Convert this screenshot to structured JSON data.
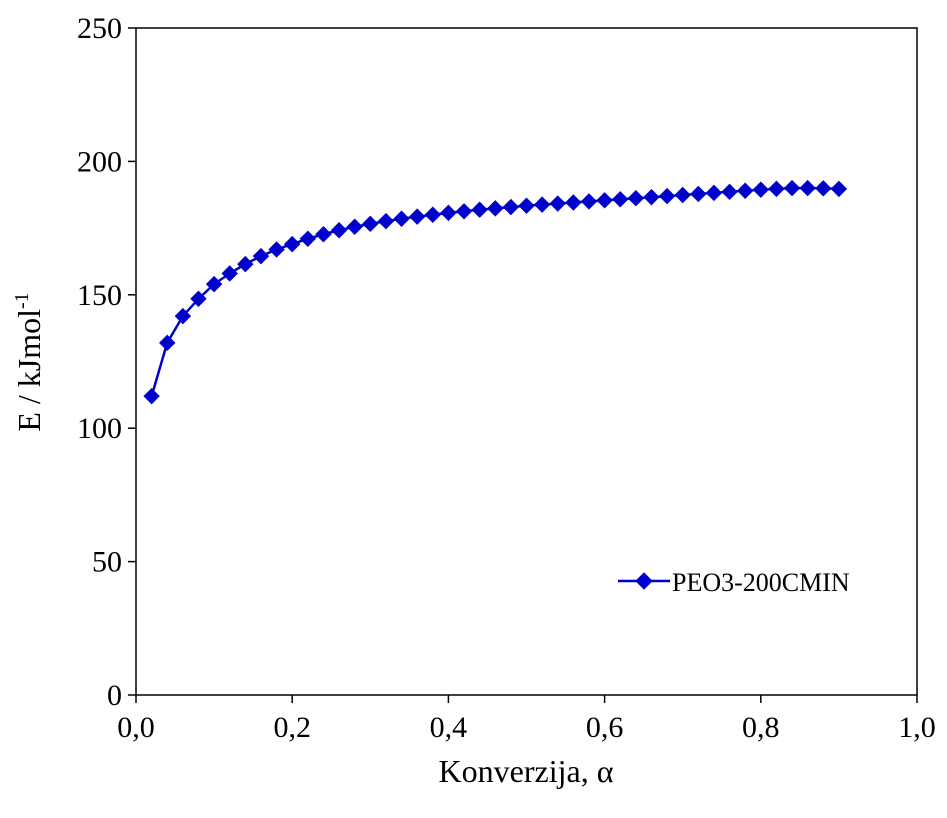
{
  "chart_data": {
    "type": "line",
    "title": "",
    "xlabel": "Konverzija, α",
    "ylabel_main": "E / kJmol",
    "ylabel_sup": "-1",
    "xlim": [
      0,
      1
    ],
    "ylim": [
      0,
      250
    ],
    "x_ticks": [
      0,
      0.2,
      0.4,
      0.6,
      0.8,
      1.0
    ],
    "x_tick_labels": [
      "0,0",
      "0,2",
      "0,4",
      "0,6",
      "0,8",
      "1,0"
    ],
    "y_ticks": [
      0,
      50,
      100,
      150,
      200,
      250
    ],
    "y_tick_labels": [
      "0",
      "50",
      "100",
      "150",
      "200",
      "250"
    ],
    "grid": false,
    "legend_position": "lower-right",
    "series": [
      {
        "name": "PEO3-200CMIN",
        "color": "#0000CC",
        "marker": "diamond",
        "x": [
          0.02,
          0.04,
          0.06,
          0.08,
          0.1,
          0.12,
          0.14,
          0.16,
          0.18,
          0.2,
          0.22,
          0.24,
          0.26,
          0.28,
          0.3,
          0.32,
          0.34,
          0.36,
          0.38,
          0.4,
          0.42,
          0.44,
          0.46,
          0.48,
          0.5,
          0.52,
          0.54,
          0.56,
          0.58,
          0.6,
          0.62,
          0.64,
          0.66,
          0.68,
          0.7,
          0.72,
          0.74,
          0.76,
          0.78,
          0.8,
          0.82,
          0.84,
          0.86,
          0.88,
          0.9
        ],
        "y": [
          112,
          132,
          142,
          148.5,
          154,
          158,
          161.5,
          164.5,
          167,
          169,
          171,
          172.7,
          174.2,
          175.5,
          176.6,
          177.6,
          178.5,
          179.3,
          180,
          180.7,
          181.3,
          181.9,
          182.4,
          182.9,
          183.4,
          183.8,
          184.2,
          184.6,
          185,
          185.4,
          185.8,
          186.2,
          186.6,
          187,
          187.4,
          187.8,
          188.2,
          188.6,
          189,
          189.4,
          189.7,
          190,
          190,
          189.9,
          189.7
        ]
      }
    ]
  }
}
